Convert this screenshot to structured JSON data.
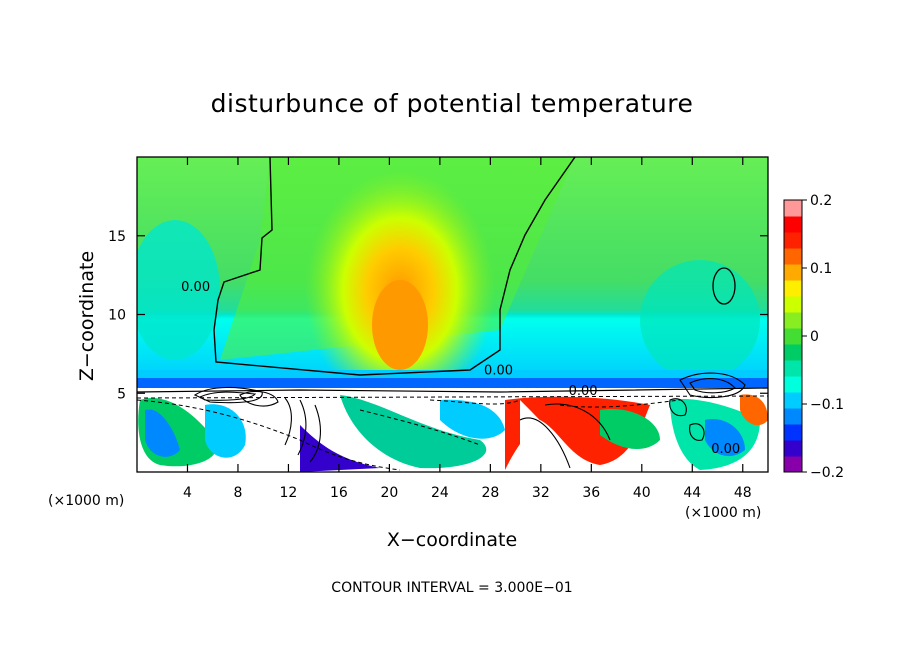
{
  "chart_data": {
    "type": "heatmap",
    "title": "disturbunce of potential temperature",
    "xlabel": "X−coordinate",
    "ylabel": "Z−coordinate",
    "x_unit_left": "(×1000 m)",
    "x_unit_right": "(×1000 m)",
    "footer": "CONTOUR INTERVAL = 3.000E−01",
    "xlim": [
      0,
      50
    ],
    "ylim": [
      0,
      20
    ],
    "x_ticks": [
      "4",
      "8",
      "12",
      "16",
      "20",
      "24",
      "28",
      "32",
      "36",
      "40",
      "44",
      "48"
    ],
    "y_ticks": [
      "5",
      "10",
      "15"
    ],
    "colorbar": {
      "range": [
        -0.2,
        0.2
      ],
      "tick_labels": [
        "0.2",
        "0.1",
        "0",
        "−0.1",
        "−0.2"
      ],
      "colors": [
        "#8800aa",
        "#3300cc",
        "#0033ff",
        "#0088ff",
        "#00ccff",
        "#00ffdd",
        "#00e6aa",
        "#00cc66",
        "#44dd33",
        "#88ee22",
        "#ccff00",
        "#ffee00",
        "#ffaa00",
        "#ff6600",
        "#ff2200",
        "#ff0000",
        "#ff9999"
      ]
    },
    "contour_labels": [
      {
        "text": "0.00",
        "x": 3.5,
        "y": 11.5
      },
      {
        "text": "0.00",
        "x": 27.5,
        "y": 6.2
      },
      {
        "text": "0.00",
        "x": 34.2,
        "y": 4.9
      },
      {
        "text": "0.00",
        "x": 45.5,
        "y": 1.2
      }
    ],
    "features": [
      {
        "name": "warm-anomaly",
        "x": 20.5,
        "z": 9.0,
        "value": 0.11
      },
      {
        "name": "cold-layer",
        "x": 25,
        "z": 5.7,
        "value": -0.1
      }
    ]
  }
}
